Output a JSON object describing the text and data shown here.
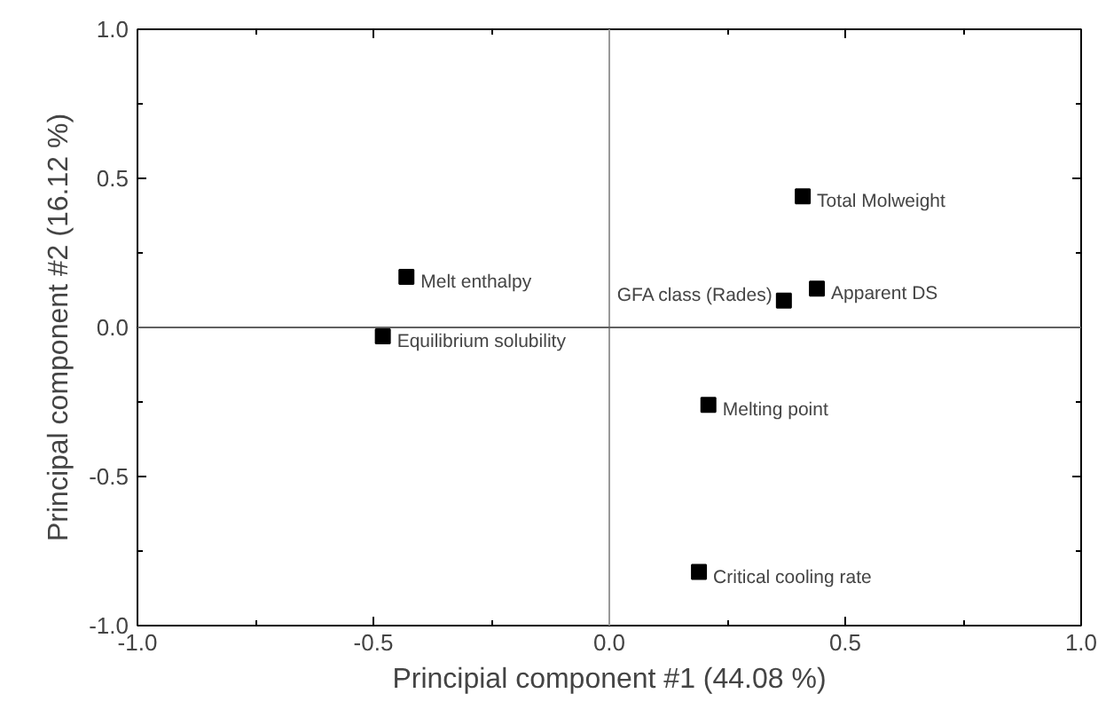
{
  "chart_data": {
    "type": "scatter",
    "xlabel": "Principial component #1 (44.08 %)",
    "ylabel": "Principal component #2 (16.12 %)",
    "x": [
      -0.43,
      -0.48,
      0.41,
      0.44,
      0.37,
      0.21,
      0.19
    ],
    "values": [
      0.17,
      -0.03,
      0.44,
      0.13,
      0.09,
      -0.26,
      -0.82
    ],
    "color": "#000000",
    "marker": "square",
    "grid": false,
    "xlim": [
      -1.0,
      1.0
    ],
    "ylim": [
      -1.0,
      1.0
    ],
    "xticks": [
      {
        "value": -1.0,
        "label": "-1.0"
      },
      {
        "value": -0.5,
        "label": "-0.5"
      },
      {
        "value": 0,
        "label": "0.0"
      },
      {
        "value": 0.5,
        "label": "0.5"
      },
      {
        "value": 1.0,
        "label": "1.0"
      }
    ],
    "yticks": [
      {
        "value": -1.0,
        "label": "-1.0"
      },
      {
        "value": -0.5,
        "label": "-0.5"
      },
      {
        "value": 0,
        "label": "0.0"
      },
      {
        "value": 0.5,
        "label": "0.5"
      },
      {
        "value": 1.0,
        "label": "1.0"
      }
    ],
    "ref_lines": [
      {
        "axis": "x",
        "value": 0,
        "color": "#999999"
      },
      {
        "axis": "y",
        "value": 0,
        "color": "#606060"
      }
    ],
    "annotations": [
      {
        "text": "Melt enthalpy",
        "x": -0.43,
        "y": 0.17
      },
      {
        "text": "Equilibrium solubility",
        "x": -0.48,
        "y": -0.03
      },
      {
        "text": "Total Molweight",
        "x": 0.41,
        "y": 0.44
      },
      {
        "text": "Apparent DS",
        "x": 0.44,
        "y": 0.13
      },
      {
        "text": "GFA class (Rades)",
        "x": 0.37,
        "y": 0.09
      },
      {
        "text": "Melting point",
        "x": 0.21,
        "y": -0.26
      },
      {
        "text": "Critical cooling rate",
        "x": 0.19,
        "y": -0.82
      }
    ]
  }
}
